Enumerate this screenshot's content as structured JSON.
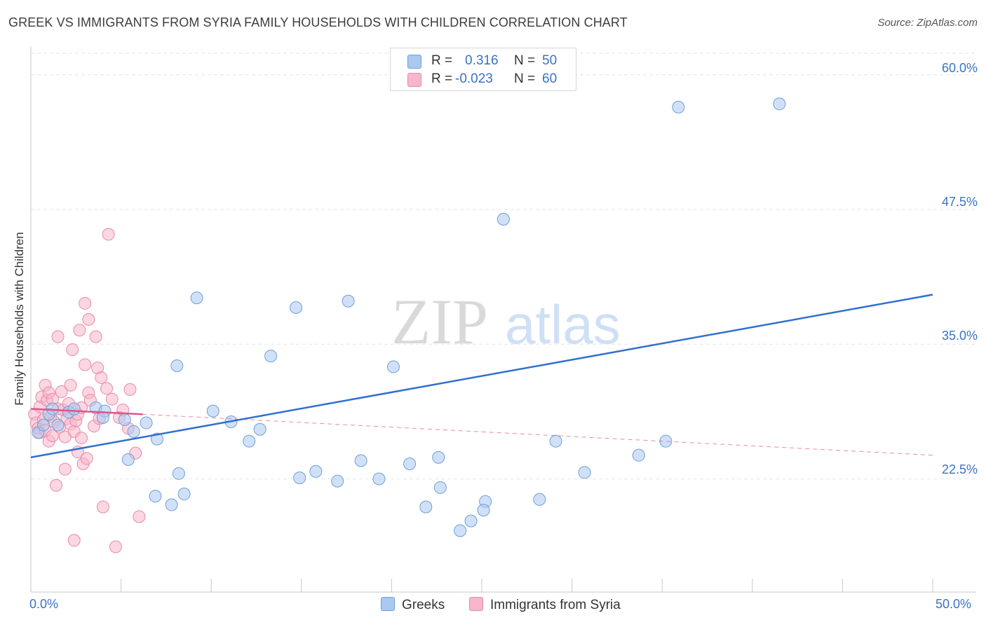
{
  "title": "GREEK VS IMMIGRANTS FROM SYRIA FAMILY HOUSEHOLDS WITH CHILDREN CORRELATION CHART",
  "source": "Source: ZipAtlas.com",
  "watermark": {
    "zip": "ZIP",
    "atlas": "atlas"
  },
  "legend": {
    "greeks": {
      "r_label": "R =",
      "r_value": "0.316",
      "n_label": "N =",
      "n_value": "50"
    },
    "syria": {
      "r_label": "R =",
      "r_value": "-0.023",
      "n_label": "N =",
      "n_value": "60"
    }
  },
  "bottom_legend": {
    "greeks": "Greeks",
    "syria": "Immigrants from Syria"
  },
  "colors": {
    "greeks_fill": "#aac8f0",
    "greeks_stroke": "#6e9fd8",
    "greeks_line": "#2f6fcf",
    "syria_fill": "#f7b6cb",
    "syria_stroke": "#e88aa8",
    "syria_line": "#e05585",
    "tick_text": "#3a72c8",
    "grid": "#e6e6e6"
  },
  "chart_data": {
    "type": "scatter",
    "title": "GREEK VS IMMIGRANTS FROM SYRIA FAMILY HOUSEHOLDS WITH CHILDREN CORRELATION CHART",
    "xlabel": "",
    "ylabel": "Family Households with Children",
    "xlim": [
      0,
      50
    ],
    "ylim": [
      12.0,
      62.0
    ],
    "x_tick_labels": [
      "0.0%",
      "50.0%"
    ],
    "y_ticks": [
      22.5,
      35.0,
      47.5,
      60.0
    ],
    "y_tick_labels": [
      "22.5%",
      "35.0%",
      "47.5%",
      "60.0%"
    ],
    "series": [
      {
        "name": "Greeks",
        "points": [
          [
            0.4,
            26.8
          ],
          [
            0.7,
            27.5
          ],
          [
            1.0,
            28.5
          ],
          [
            1.2,
            29.0
          ],
          [
            1.5,
            27.5
          ],
          [
            2.1,
            28.7
          ],
          [
            2.4,
            29.0
          ],
          [
            3.6,
            29.1
          ],
          [
            4.1,
            28.8
          ],
          [
            4.0,
            28.2
          ],
          [
            5.2,
            28.0
          ],
          [
            5.7,
            26.9
          ],
          [
            6.4,
            27.7
          ],
          [
            7.0,
            26.2
          ],
          [
            5.4,
            24.3
          ],
          [
            8.2,
            23.0
          ],
          [
            8.5,
            21.1
          ],
          [
            6.9,
            20.9
          ],
          [
            7.8,
            20.1
          ],
          [
            8.1,
            33.0
          ],
          [
            9.2,
            39.3
          ],
          [
            10.1,
            28.8
          ],
          [
            11.1,
            27.8
          ],
          [
            12.1,
            26.0
          ],
          [
            12.7,
            27.1
          ],
          [
            13.3,
            33.9
          ],
          [
            14.7,
            38.4
          ],
          [
            14.9,
            22.6
          ],
          [
            15.8,
            23.2
          ],
          [
            17.0,
            22.3
          ],
          [
            17.6,
            39.0
          ],
          [
            18.3,
            24.2
          ],
          [
            19.3,
            22.5
          ],
          [
            20.1,
            32.9
          ],
          [
            22.7,
            21.7
          ],
          [
            21.0,
            23.9
          ],
          [
            21.9,
            19.9
          ],
          [
            23.8,
            17.7
          ],
          [
            24.4,
            18.6
          ],
          [
            22.6,
            24.5
          ],
          [
            25.2,
            20.4
          ],
          [
            26.2,
            46.6
          ],
          [
            25.1,
            19.6
          ],
          [
            30.7,
            23.1
          ],
          [
            29.1,
            26.0
          ],
          [
            28.2,
            20.6
          ],
          [
            33.7,
            24.7
          ],
          [
            35.2,
            26.0
          ],
          [
            35.9,
            57.0
          ],
          [
            41.5,
            57.3
          ]
        ]
      },
      {
        "name": "Immigrants from Syria",
        "points": [
          [
            0.2,
            28.5
          ],
          [
            0.3,
            27.7
          ],
          [
            0.4,
            27.2
          ],
          [
            0.5,
            29.2
          ],
          [
            0.5,
            26.8
          ],
          [
            0.6,
            30.1
          ],
          [
            0.7,
            28.0
          ],
          [
            0.8,
            31.2
          ],
          [
            0.8,
            27.0
          ],
          [
            0.9,
            29.8
          ],
          [
            1.0,
            26.0
          ],
          [
            1.0,
            30.5
          ],
          [
            1.1,
            28.3
          ],
          [
            1.2,
            26.5
          ],
          [
            1.2,
            29.9
          ],
          [
            1.3,
            27.8
          ],
          [
            1.4,
            21.9
          ],
          [
            1.5,
            35.7
          ],
          [
            1.5,
            29.0
          ],
          [
            1.6,
            27.3
          ],
          [
            1.7,
            30.6
          ],
          [
            1.8,
            28.9
          ],
          [
            1.9,
            26.4
          ],
          [
            1.9,
            23.4
          ],
          [
            2.0,
            28.1
          ],
          [
            2.1,
            29.5
          ],
          [
            2.2,
            27.6
          ],
          [
            2.2,
            31.2
          ],
          [
            2.3,
            34.5
          ],
          [
            2.4,
            26.9
          ],
          [
            2.5,
            27.9
          ],
          [
            2.6,
            28.5
          ],
          [
            2.6,
            25.0
          ],
          [
            2.7,
            36.3
          ],
          [
            2.8,
            29.1
          ],
          [
            2.8,
            26.3
          ],
          [
            2.9,
            23.9
          ],
          [
            3.0,
            38.8
          ],
          [
            3.0,
            33.1
          ],
          [
            3.1,
            24.4
          ],
          [
            3.2,
            37.3
          ],
          [
            3.2,
            30.5
          ],
          [
            3.3,
            29.8
          ],
          [
            3.5,
            27.4
          ],
          [
            3.6,
            35.7
          ],
          [
            3.7,
            32.8
          ],
          [
            3.8,
            28.1
          ],
          [
            3.9,
            31.9
          ],
          [
            4.0,
            19.9
          ],
          [
            4.2,
            30.9
          ],
          [
            4.3,
            45.2
          ],
          [
            4.5,
            29.9
          ],
          [
            4.7,
            16.2
          ],
          [
            4.9,
            28.2
          ],
          [
            5.1,
            28.9
          ],
          [
            5.4,
            27.2
          ],
          [
            5.5,
            30.8
          ],
          [
            5.8,
            24.9
          ],
          [
            6.0,
            19.0
          ],
          [
            2.4,
            16.8
          ]
        ]
      }
    ],
    "trend_lines": [
      {
        "series": "Greeks",
        "x": [
          0,
          50
        ],
        "y": [
          24.5,
          39.6
        ],
        "style": "solid"
      },
      {
        "series": "Immigrants from Syria",
        "x": [
          0,
          6.2
        ],
        "y": [
          29.0,
          28.5
        ],
        "style": "solid"
      },
      {
        "series": "Immigrants from Syria",
        "x": [
          6.2,
          50
        ],
        "y": [
          28.5,
          24.7
        ],
        "style": "dashed"
      }
    ]
  }
}
